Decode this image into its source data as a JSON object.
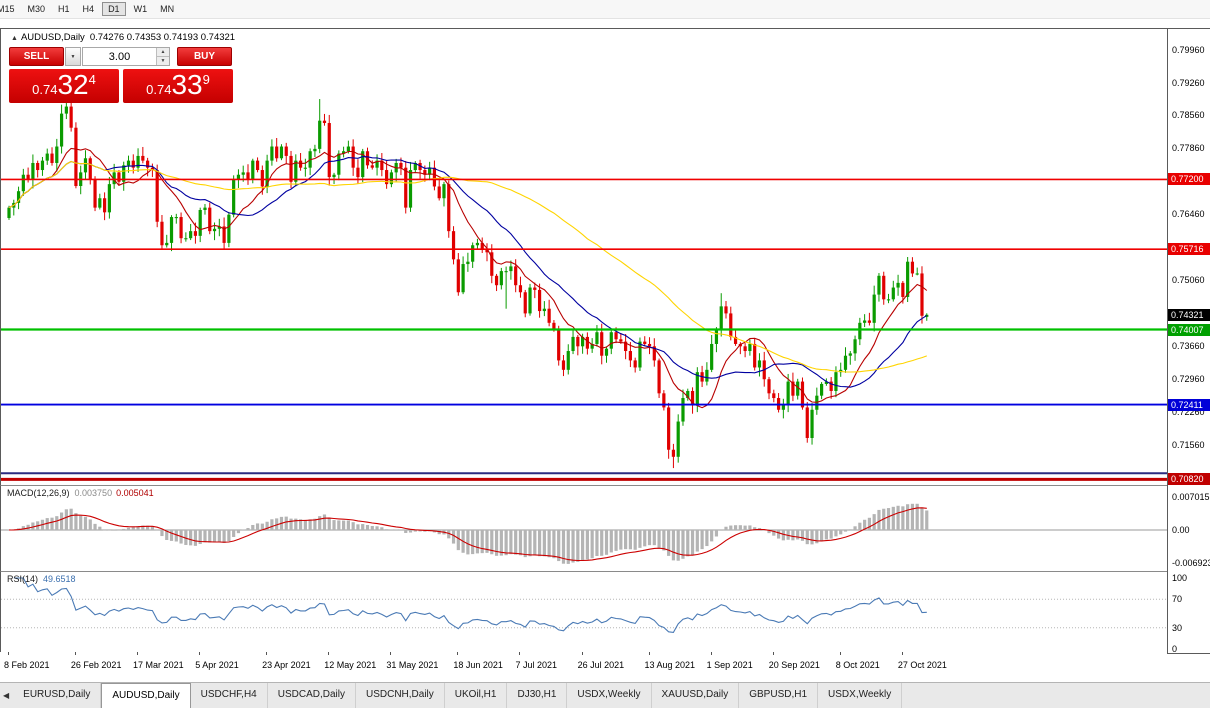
{
  "toolbar": {
    "timeframes": [
      {
        "label": "M15",
        "active": false,
        "cropped": true
      },
      {
        "label": "M30",
        "active": false
      },
      {
        "label": "H1",
        "active": false
      },
      {
        "label": "H4",
        "active": false
      },
      {
        "label": "D1",
        "active": true
      },
      {
        "label": "W1",
        "active": false
      },
      {
        "label": "MN",
        "active": false
      }
    ]
  },
  "chart_header": {
    "marker_icon": "▲",
    "title": "AUDUSD,Daily",
    "ohlc": "0.74276 0.74353 0.74193 0.74321"
  },
  "trade_panel": {
    "sell_label": "SELL",
    "buy_label": "BUY",
    "volume": "3.00",
    "dropdown_icon": "▼",
    "spinner_up_icon": "▲",
    "spinner_down_icon": "▼",
    "sell_price": {
      "prefix": "0.74",
      "big": "32",
      "sup": "4"
    },
    "buy_price": {
      "prefix": "0.74",
      "big": "33",
      "sup": "9"
    }
  },
  "chart_data": {
    "type": "candlestick",
    "symbol": "AUDUSD",
    "period": "Daily",
    "price_range": {
      "top": 0.804,
      "bottom": 0.707
    },
    "first_open": 0.7638,
    "closes": [
      0.766,
      0.767,
      0.7695,
      0.773,
      0.772,
      0.7755,
      0.774,
      0.776,
      0.7775,
      0.7755,
      0.779,
      0.786,
      0.7875,
      0.783,
      0.7706,
      0.7735,
      0.7765,
      0.772,
      0.766,
      0.768,
      0.765,
      0.771,
      0.7735,
      0.7715,
      0.775,
      0.776,
      0.7745,
      0.777,
      0.776,
      0.7745,
      0.774,
      0.763,
      0.758,
      0.7585,
      0.764,
      0.764,
      0.7595,
      0.7595,
      0.761,
      0.76,
      0.7655,
      0.766,
      0.761,
      0.7615,
      0.762,
      0.7585,
      0.7645,
      0.772,
      0.773,
      0.7735,
      0.772,
      0.776,
      0.774,
      0.7705,
      0.776,
      0.779,
      0.7765,
      0.779,
      0.777,
      0.7715,
      0.776,
      0.7745,
      0.7745,
      0.778,
      0.7785,
      0.7845,
      0.784,
      0.7725,
      0.773,
      0.7775,
      0.778,
      0.779,
      0.7745,
      0.7725,
      0.778,
      0.775,
      0.7745,
      0.776,
      0.774,
      0.771,
      0.7735,
      0.7755,
      0.7745,
      0.766,
      0.774,
      0.7755,
      0.774,
      0.773,
      0.7745,
      0.7705,
      0.768,
      0.771,
      0.761,
      0.755,
      0.748,
      0.754,
      0.7545,
      0.758,
      0.7585,
      0.757,
      0.7565,
      0.7515,
      0.7495,
      0.7525,
      0.7525,
      0.7535,
      0.7495,
      0.748,
      0.7435,
      0.749,
      0.7485,
      0.744,
      0.7445,
      0.7415,
      0.74,
      0.7335,
      0.7315,
      0.7355,
      0.7385,
      0.7365,
      0.7385,
      0.736,
      0.737,
      0.7395,
      0.7345,
      0.736,
      0.7395,
      0.738,
      0.7375,
      0.7355,
      0.7335,
      0.732,
      0.7375,
      0.737,
      0.7365,
      0.7335,
      0.7265,
      0.7235,
      0.7145,
      0.713,
      0.7205,
      0.7255,
      0.727,
      0.724,
      0.731,
      0.729,
      0.7315,
      0.737,
      0.74,
      0.745,
      0.7435,
      0.7385,
      0.737,
      0.7365,
      0.7355,
      0.737,
      0.732,
      0.7335,
      0.7295,
      0.7265,
      0.7255,
      0.723,
      0.724,
      0.729,
      0.726,
      0.729,
      0.7235,
      0.717,
      0.723,
      0.726,
      0.7285,
      0.729,
      0.727,
      0.731,
      0.7315,
      0.7345,
      0.735,
      0.738,
      0.7415,
      0.742,
      0.7415,
      0.7475,
      0.7515,
      0.7465,
      0.7465,
      0.749,
      0.75,
      0.747,
      0.7545,
      0.752,
      0.752,
      0.743,
      0.74321
    ],
    "wick_overrides": {
      "12": {
        "h": 0.79
      },
      "65": {
        "h": 0.7891
      },
      "104": {
        "l": 0.7445
      },
      "115": {
        "l": 0.7324
      },
      "139": {
        "l": 0.7106
      },
      "149": {
        "h": 0.7478
      },
      "167": {
        "l": 0.716
      },
      "188": {
        "h": 0.7555
      },
      "192": {
        "o": 0.74276,
        "h": 0.74353,
        "l": 0.74193
      }
    },
    "candle_up_color": "#0a9b00",
    "candle_down_color": "#e00000",
    "moving_averages": [
      {
        "period": 10,
        "color": "#b80000"
      },
      {
        "period": 21,
        "color": "#0000a0"
      },
      {
        "period": 55,
        "color": "#ffd400"
      }
    ],
    "hlines": [
      {
        "price": 0.772,
        "color": "#f00000",
        "width": 1.6
      },
      {
        "price": 0.75716,
        "color": "#f00000",
        "width": 1.6
      },
      {
        "price": 0.74007,
        "color": "#00c000",
        "width": 2.2
      },
      {
        "price": 0.72411,
        "color": "#0000e0",
        "width": 1.8
      },
      {
        "price": 0.7095,
        "color": "#2b2b80",
        "width": 2
      },
      {
        "price": 0.7082,
        "color": "#c00000",
        "width": 3
      }
    ],
    "axis_ticks": [
      "0.79960",
      "0.79260",
      "0.78560",
      "0.77860",
      "0.76460",
      "0.75060",
      "0.73660",
      "0.72960",
      "0.72260",
      "0.71560"
    ],
    "badges": [
      {
        "label": "0.77200",
        "value": 0.772,
        "color": "#e80000"
      },
      {
        "label": "0.75716",
        "value": 0.75716,
        "color": "#e80000"
      },
      {
        "label": "0.74321",
        "value": 0.74321,
        "color": "#000000"
      },
      {
        "label": "0.74007",
        "value": 0.74007,
        "color": "#00a000"
      },
      {
        "label": "0.72411",
        "value": 0.72411,
        "color": "#0000d8"
      },
      {
        "label": "0.70820",
        "value": 0.7082,
        "color": "#c00000"
      }
    ],
    "date_labels": [
      {
        "label": "8 Feb 2021",
        "i": 0
      },
      {
        "label": "26 Feb 2021",
        "i": 14
      },
      {
        "label": "17 Mar 2021",
        "i": 27
      },
      {
        "label": "5 Apr 2021",
        "i": 40
      },
      {
        "label": "23 Apr 2021",
        "i": 54
      },
      {
        "label": "12 May 2021",
        "i": 67
      },
      {
        "label": "31 May 2021",
        "i": 80
      },
      {
        "label": "18 Jun 2021",
        "i": 94
      },
      {
        "label": "7 Jul 2021",
        "i": 107
      },
      {
        "label": "26 Jul 2021",
        "i": 120
      },
      {
        "label": "13 Aug 2021",
        "i": 134
      },
      {
        "label": "1 Sep 2021",
        "i": 147
      },
      {
        "label": "20 Sep 2021",
        "i": 160
      },
      {
        "label": "8 Oct 2021",
        "i": 174
      },
      {
        "label": "27 Oct 2021",
        "i": 187
      }
    ],
    "macd": {
      "label": "MACD(12,26,9)",
      "main_value": "0.003750",
      "signal_value": "0.005041",
      "fast": 12,
      "slow": 26,
      "signal": 9,
      "axis_labels": [
        {
          "label": "0.007015",
          "value": 0.007015
        },
        {
          "label": "0.00",
          "value": 0
        },
        {
          "label": "-0.006923",
          "value": -0.006923
        }
      ],
      "histogram_color": "#b4b4b4",
      "signal_color": "#cc0000",
      "zero_line_color": "#9a9a9a"
    },
    "rsi": {
      "label": "RSI(14)",
      "value": "49.6518",
      "period": 14,
      "axis_labels": [
        {
          "label": "100",
          "value": 100
        },
        {
          "label": "70",
          "value": 70
        },
        {
          "label": "30",
          "value": 30
        },
        {
          "label": "0",
          "value": 0
        }
      ],
      "levels": [
        70,
        30
      ],
      "level_color": "#b5b5b5",
      "line_color": "#4a7ab5"
    }
  },
  "tabs": {
    "scroll_left_icon": "◀",
    "items": [
      {
        "label": "EURUSD,Daily",
        "active": false
      },
      {
        "label": "AUDUSD,Daily",
        "active": true
      },
      {
        "label": "USDCHF,H4",
        "active": false
      },
      {
        "label": "USDCAD,Daily",
        "active": false
      },
      {
        "label": "USDCNH,Daily",
        "active": false
      },
      {
        "label": "UKOil,H1",
        "active": false
      },
      {
        "label": "DJ30,H1",
        "active": false
      },
      {
        "label": "USDX,Weekly",
        "active": false
      },
      {
        "label": "XAUUSD,Daily",
        "active": false
      },
      {
        "label": "GBPUSD,H1",
        "active": false
      },
      {
        "label": "USDX,Weekly",
        "active": false
      }
    ]
  }
}
